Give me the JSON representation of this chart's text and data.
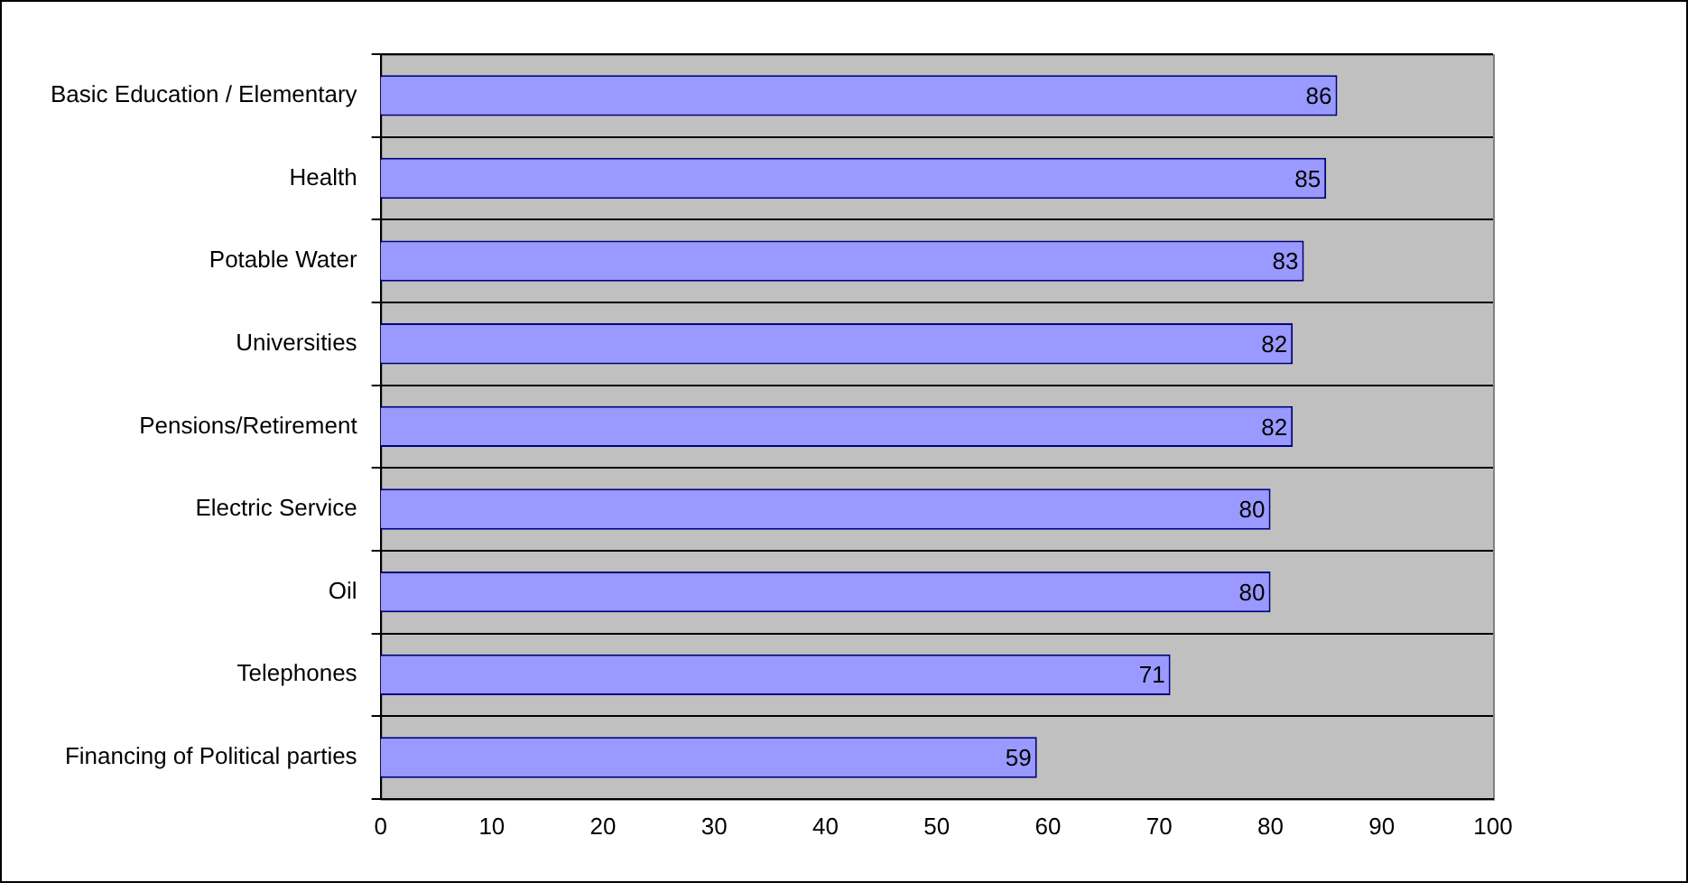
{
  "chart_data": {
    "type": "bar",
    "orientation": "horizontal",
    "categories": [
      "Basic Education / Elementary",
      "Health",
      "Potable Water",
      "Universities",
      "Pensions/Retirement",
      "Electric Service",
      "Oil",
      "Telephones",
      "Financing of Political parties"
    ],
    "values": [
      86,
      85,
      83,
      82,
      82,
      80,
      80,
      71,
      59
    ],
    "color": "#9999ff",
    "xlim": [
      0,
      100
    ],
    "xticks": [
      0,
      10,
      20,
      30,
      40,
      50,
      60,
      70,
      80,
      90,
      100
    ],
    "grid": "y",
    "legend": false,
    "data_labels": true
  }
}
